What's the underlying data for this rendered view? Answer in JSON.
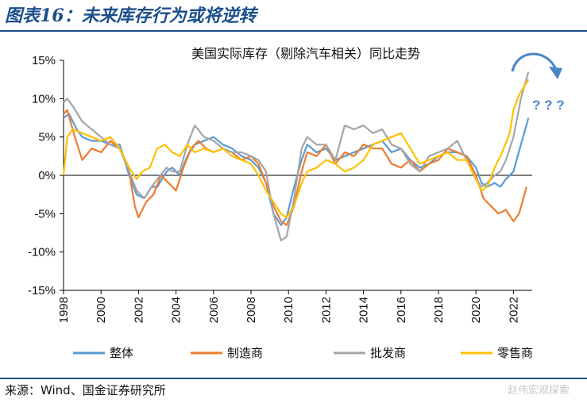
{
  "figure": {
    "title": "图表16：未来库存行为或将逆转",
    "source": "来源：Wind、国金证券研究所",
    "watermark": "赵伟宏观探索"
  },
  "chart_data": {
    "type": "line",
    "title": "美国实际库存（剔除汽车相关）同比走势",
    "xlabel": "",
    "ylabel": "",
    "ylim": [
      -15,
      15
    ],
    "xlim": [
      1998,
      2023
    ],
    "x_ticks": [
      "1998",
      "2000",
      "2002",
      "2004",
      "2006",
      "2008",
      "2010",
      "2012",
      "2014",
      "2016",
      "2018",
      "2020",
      "2022"
    ],
    "y_ticks": [
      "15%",
      "10%",
      "5%",
      "0%",
      "-5%",
      "-10%",
      "-15%"
    ],
    "legend_position": "bottom",
    "annotation": "? ? ?",
    "series": [
      {
        "name": "整体",
        "color": "#5b9bd5",
        "x": [
          1998.0,
          1998.3,
          1998.7,
          1999.0,
          1999.5,
          2000.0,
          2000.5,
          2001.0,
          2001.5,
          2001.9,
          2002.3,
          2002.7,
          2003.0,
          2003.5,
          2003.8,
          2004.2,
          2004.6,
          2005.0,
          2005.5,
          2006.0,
          2006.5,
          2007.0,
          2007.5,
          2008.0,
          2008.4,
          2008.8,
          2009.2,
          2009.6,
          2009.9,
          2010.3,
          2010.7,
          2011.0,
          2011.5,
          2012.0,
          2012.5,
          2013.0,
          2013.5,
          2014.0,
          2014.5,
          2015.0,
          2015.5,
          2016.0,
          2016.5,
          2017.0,
          2017.5,
          2018.0,
          2018.5,
          2019.0,
          2019.5,
          2020.0,
          2020.3,
          2020.6,
          2021.0,
          2021.3,
          2021.6,
          2022.0,
          2022.4,
          2022.8
        ],
        "values": [
          7.5,
          8.0,
          6.0,
          5.0,
          4.5,
          4.5,
          4.0,
          4.0,
          0.0,
          -2.5,
          -3.0,
          -1.5,
          -1.5,
          0.5,
          1.0,
          0.0,
          2.5,
          4.0,
          4.5,
          5.0,
          4.0,
          3.5,
          2.5,
          2.0,
          1.0,
          -1.0,
          -5.0,
          -6.5,
          -5.5,
          -1.5,
          2.0,
          4.0,
          3.0,
          3.5,
          2.0,
          2.5,
          3.0,
          3.5,
          4.0,
          4.5,
          3.0,
          3.5,
          2.0,
          1.0,
          1.5,
          2.5,
          3.0,
          3.0,
          2.5,
          1.0,
          -1.0,
          -1.5,
          -1.0,
          -1.5,
          -0.5,
          0.5,
          4.0,
          7.5
        ]
      },
      {
        "name": "制造商",
        "color": "#ed7d31",
        "x": [
          1998.0,
          1998.2,
          1998.6,
          1999.0,
          1999.5,
          2000.0,
          2000.5,
          2001.0,
          2001.5,
          2001.8,
          2002.0,
          2002.4,
          2002.8,
          2003.2,
          2003.6,
          2004.0,
          2004.4,
          2004.8,
          2005.2,
          2005.6,
          2006.0,
          2006.5,
          2007.0,
          2007.5,
          2008.0,
          2008.4,
          2008.8,
          2009.2,
          2009.6,
          2009.9,
          2010.3,
          2010.7,
          2011.0,
          2011.5,
          2012.0,
          2012.5,
          2013.0,
          2013.5,
          2014.0,
          2014.5,
          2015.0,
          2015.5,
          2016.0,
          2016.5,
          2017.0,
          2017.5,
          2018.0,
          2018.5,
          2019.0,
          2019.5,
          2020.0,
          2020.4,
          2020.8,
          2021.2,
          2021.6,
          2022.0,
          2022.3,
          2022.7
        ],
        "values": [
          8.0,
          8.5,
          5.0,
          2.0,
          3.5,
          3.0,
          4.5,
          3.5,
          0.5,
          -4.0,
          -5.5,
          -3.5,
          -2.5,
          0.0,
          -1.0,
          -2.0,
          1.0,
          3.5,
          4.5,
          3.5,
          3.0,
          3.5,
          3.0,
          2.0,
          2.5,
          1.5,
          -1.0,
          -4.0,
          -6.0,
          -6.5,
          -4.0,
          0.5,
          3.0,
          2.5,
          4.0,
          1.5,
          3.0,
          2.5,
          4.0,
          3.5,
          3.5,
          1.5,
          1.0,
          2.0,
          0.5,
          1.5,
          2.0,
          3.5,
          3.0,
          2.5,
          0.0,
          -3.0,
          -4.0,
          -5.0,
          -4.5,
          -6.0,
          -5.0,
          -1.5
        ]
      },
      {
        "name": "批发商",
        "color": "#a5a5a5",
        "x": [
          1998.0,
          1998.2,
          1998.5,
          1999.0,
          1999.5,
          2000.0,
          2000.5,
          2001.0,
          2001.5,
          2001.9,
          2002.3,
          2002.7,
          2003.0,
          2003.5,
          2003.8,
          2004.2,
          2004.6,
          2005.0,
          2005.5,
          2006.0,
          2006.5,
          2007.0,
          2007.5,
          2008.0,
          2008.4,
          2008.8,
          2009.2,
          2009.6,
          2009.9,
          2010.3,
          2010.7,
          2011.0,
          2011.5,
          2012.0,
          2012.5,
          2013.0,
          2013.5,
          2014.0,
          2014.5,
          2015.0,
          2015.5,
          2016.0,
          2016.5,
          2017.0,
          2017.5,
          2018.0,
          2018.5,
          2019.0,
          2019.5,
          2020.0,
          2020.3,
          2020.6,
          2021.0,
          2021.3,
          2021.6,
          2022.0,
          2022.4,
          2022.8
        ],
        "values": [
          9.5,
          10.0,
          9.0,
          7.0,
          6.0,
          5.0,
          4.0,
          3.5,
          0.5,
          -2.0,
          -3.0,
          -1.5,
          -0.5,
          1.0,
          0.5,
          0.5,
          4.0,
          6.5,
          5.0,
          4.5,
          3.5,
          3.0,
          3.0,
          2.5,
          2.0,
          0.5,
          -5.0,
          -8.5,
          -8.0,
          -3.0,
          3.5,
          5.0,
          4.0,
          4.0,
          2.0,
          6.5,
          6.0,
          6.5,
          5.5,
          6.0,
          4.0,
          3.5,
          1.5,
          0.5,
          2.5,
          3.0,
          3.5,
          4.5,
          2.0,
          -0.5,
          -1.5,
          -1.0,
          0.0,
          0.5,
          2.0,
          5.0,
          10.0,
          13.5
        ]
      },
      {
        "name": "零售商",
        "color": "#ffc000",
        "x": [
          1998.0,
          1998.2,
          1998.5,
          1999.0,
          1999.5,
          2000.0,
          2000.5,
          2001.0,
          2001.5,
          2001.9,
          2002.2,
          2002.6,
          2003.0,
          2003.4,
          2003.8,
          2004.2,
          2004.6,
          2005.0,
          2005.5,
          2006.0,
          2006.5,
          2007.0,
          2007.5,
          2008.0,
          2008.4,
          2008.8,
          2009.2,
          2009.6,
          2009.9,
          2010.3,
          2010.7,
          2011.0,
          2011.5,
          2012.0,
          2012.5,
          2013.0,
          2013.5,
          2014.0,
          2014.5,
          2015.0,
          2015.5,
          2016.0,
          2016.5,
          2017.0,
          2017.5,
          2018.0,
          2018.5,
          2019.0,
          2019.5,
          2020.0,
          2020.3,
          2020.6,
          2021.0,
          2021.4,
          2021.8,
          2022.0,
          2022.3,
          2022.8
        ],
        "values": [
          0.0,
          5.0,
          6.0,
          5.5,
          5.0,
          4.5,
          5.0,
          3.5,
          1.0,
          -0.5,
          0.5,
          1.0,
          3.5,
          4.0,
          3.0,
          2.5,
          4.0,
          3.0,
          3.5,
          3.0,
          3.5,
          2.5,
          2.0,
          1.5,
          0.0,
          -2.0,
          -3.5,
          -5.0,
          -5.5,
          -4.0,
          -1.0,
          0.5,
          1.0,
          2.0,
          1.5,
          0.5,
          1.0,
          2.0,
          4.0,
          4.5,
          5.0,
          5.5,
          3.5,
          1.5,
          2.0,
          2.5,
          3.0,
          2.0,
          2.0,
          -0.5,
          -2.0,
          -1.5,
          1.0,
          3.0,
          5.5,
          8.5,
          10.5,
          12.5
        ]
      }
    ]
  }
}
